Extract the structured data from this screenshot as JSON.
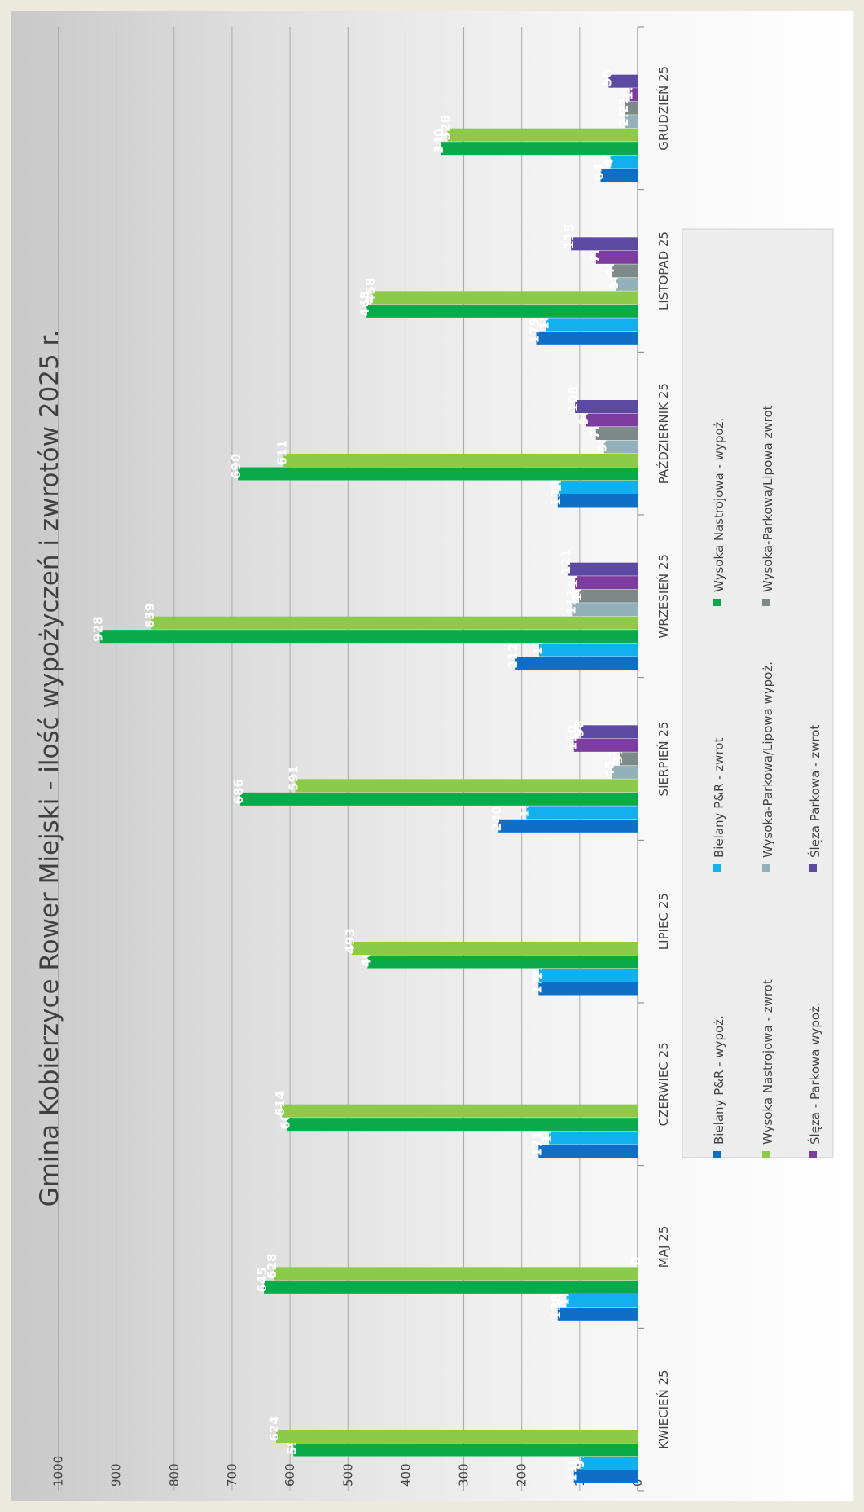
{
  "chart_data": {
    "type": "bar",
    "orientation": "horizontal",
    "title": "Gmina Kobierzyce Rower Miejski - ilość wypożyczeń i zwrotów 2025 r.",
    "xlabel": "",
    "ylabel": "",
    "ylim": [
      0,
      1000
    ],
    "ticks": [
      "0",
      "100",
      "200",
      "300",
      "400",
      "500",
      "600",
      "700",
      "800",
      "900",
      "1000"
    ],
    "grid": true,
    "legend_position": "bottom",
    "categories": [
      "KWIECIEŃ 25",
      "MAJ 25",
      "CZERWIEC 25",
      "LIPIEC 25",
      "SIERPIEŃ 25",
      "WRZESIEŃ 25",
      "PAŹDZIERNIK 25",
      "LISTOPAD 25",
      "GRUDZIEŃ 25"
    ],
    "series": [
      {
        "name": "Bielany P&R - wypoż.",
        "color": "#0f6fc6",
        "values": [
          110,
          138,
          171,
          171,
          240,
          212,
          138,
          175,
          64
        ],
        "labels": [
          "110",
          "138",
          "171",
          "171",
          "240",
          "212",
          "138",
          "175",
          "64"
        ]
      },
      {
        "name": "Bielany P&R - zwrot",
        "color": "#12b0ef",
        "values": [
          97,
          123,
          153,
          170,
          192,
          170,
          136,
          158,
          47
        ],
        "labels": [
          "97",
          "123",
          "153",
          "170",
          "192",
          "170",
          "136",
          "158",
          "47"
        ]
      },
      {
        "name": "Wysoka Nastrojowa - wypoż.",
        "color": "#0aaa4a",
        "values": [
          594,
          645,
          605,
          466,
          686,
          928,
          690,
          468,
          340
        ],
        "labels": [
          "594",
          "645",
          "605",
          "466",
          "686",
          "928",
          "690",
          "468",
          "340"
        ]
      },
      {
        "name": "Wysoka Nastrojowa - zwrot",
        "color": "#8ccb4a",
        "values": [
          624,
          628,
          614,
          493,
          591,
          839,
          611,
          458,
          328
        ],
        "labels": [
          "624",
          "628",
          "614",
          "493",
          "591",
          "839",
          "611",
          "458",
          "328"
        ]
      },
      {
        "name": "Wysoka-Parkowa/Lipowa wypoż.",
        "color": "#93b1bb",
        "values": [
          0,
          0,
          0,
          0,
          45,
          112,
          58,
          38,
          21
        ],
        "labels": [
          "",
          "0",
          "",
          "",
          "45",
          "112",
          "58",
          "38",
          "21"
        ]
      },
      {
        "name": "Wysoka-Parkowa/Lipowa zwrot",
        "color": "#7d8a87",
        "values": [
          0,
          0,
          0,
          0,
          31,
          101,
          72,
          45,
          21
        ],
        "labels": [
          "",
          "",
          "",
          "",
          "31",
          "101",
          "72",
          "45",
          "21"
        ]
      },
      {
        "name": "Ślęza - Parkowa wypoż.",
        "color": "#7c3d9e",
        "values": [
          0,
          0,
          0,
          0,
          110,
          108,
          90,
          72,
          13
        ],
        "labels": [
          "",
          "",
          "",
          "",
          "110",
          "108",
          "90",
          "72",
          "13"
        ]
      },
      {
        "name": "Ślęza Parkowa - zwrot",
        "color": "#5c4aa2",
        "values": [
          0,
          0,
          0,
          0,
          98,
          121,
          108,
          115,
          50
        ],
        "labels": [
          "",
          "",
          "",
          "",
          "98",
          "121",
          "108",
          "115",
          "50"
        ]
      }
    ]
  }
}
